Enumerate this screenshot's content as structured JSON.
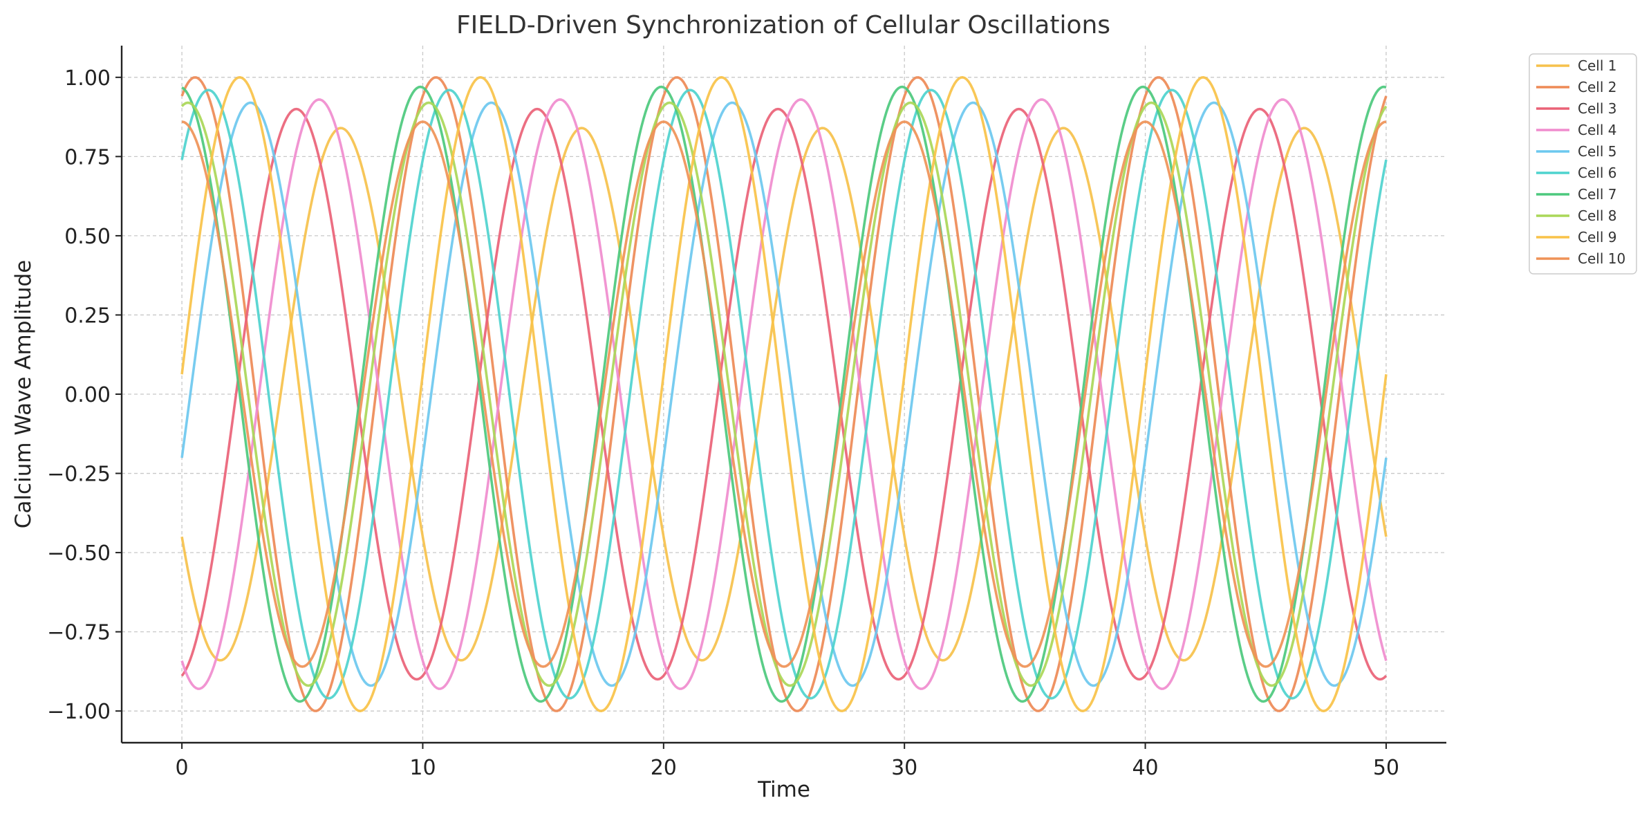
{
  "chart_data": {
    "type": "line",
    "title": "FIELD-Driven Synchronization of Cellular Oscillations",
    "xlabel": "Time",
    "ylabel": "Calcium Wave Amplitude",
    "xlim": [
      -2.5,
      52.5
    ],
    "ylim": [
      -1.1,
      1.1
    ],
    "x_ticks": [
      0,
      10,
      20,
      30,
      40,
      50
    ],
    "x_tick_labels": [
      "0",
      "10",
      "20",
      "30",
      "40",
      "50"
    ],
    "y_ticks": [
      1.0,
      0.75,
      0.5,
      0.25,
      0.0,
      -0.25,
      -0.5,
      -0.75,
      -1.0
    ],
    "y_tick_labels": [
      "1.00",
      "0.75",
      "0.50",
      "0.25",
      "0.00",
      "−0.25",
      "−0.50",
      "−0.75",
      "−1.00"
    ],
    "grid": true,
    "legend_position": "outside-top-right",
    "x_range": [
      0,
      50
    ],
    "series": [
      {
        "name": "Cell 1",
        "color": "#f6c14b",
        "amplitude": 0.84,
        "period": 10.0,
        "peak_time": 6.6
      },
      {
        "name": "Cell 2",
        "color": "#ee8a56",
        "amplitude": 1.0,
        "period": 10.0,
        "peak_time": 0.55
      },
      {
        "name": "Cell 3",
        "color": "#ea6277",
        "amplitude": 0.9,
        "period": 10.0,
        "peak_time": 4.75
      },
      {
        "name": "Cell 4",
        "color": "#f08cce",
        "amplitude": 0.93,
        "period": 10.0,
        "peak_time": 5.7
      },
      {
        "name": "Cell 5",
        "color": "#6cc8ef",
        "amplitude": 0.92,
        "period": 10.0,
        "peak_time": 2.85
      },
      {
        "name": "Cell 6",
        "color": "#4ed3ce",
        "amplitude": 0.96,
        "period": 10.0,
        "peak_time": 1.1
      },
      {
        "name": "Cell 7",
        "color": "#4cc97d",
        "amplitude": 0.97,
        "period": 10.0,
        "peak_time": 9.9
      },
      {
        "name": "Cell 8",
        "color": "#aad758",
        "amplitude": 0.92,
        "period": 10.0,
        "peak_time": 0.25
      },
      {
        "name": "Cell 9",
        "color": "#f9c248",
        "amplitude": 1.0,
        "period": 10.0,
        "peak_time": 2.4
      },
      {
        "name": "Cell 10",
        "color": "#ef9257",
        "amplitude": 0.86,
        "period": 10.0,
        "peak_time": 10.0
      }
    ]
  }
}
